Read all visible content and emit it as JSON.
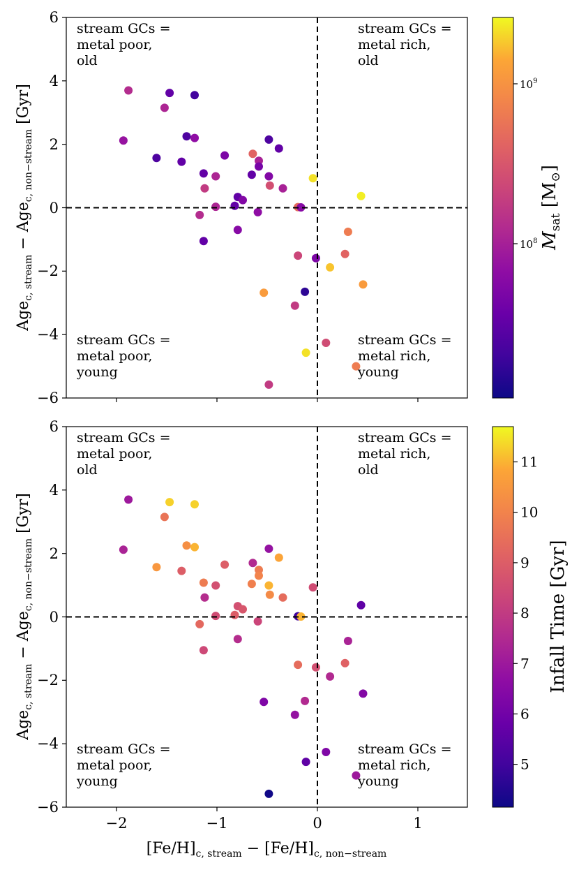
{
  "chart_data": [
    {
      "type": "scatter",
      "panel": "top",
      "xlabel": "[Fe/H]c, stream − [Fe/H]c, non−stream",
      "ylabel": "Agec, stream − Agec, non−stream [Gyr]",
      "xlim": [
        -2.5,
        1.5
      ],
      "ylim": [
        -6,
        6
      ],
      "xticks": [
        -2,
        -1,
        0,
        1
      ],
      "xtick_labels": [
        "−2",
        "−1",
        "0",
        "1"
      ],
      "yticks": [
        -6,
        -4,
        -2,
        0,
        2,
        4,
        6
      ],
      "ytick_labels": [
        "−6",
        "−4",
        "−2",
        "0",
        "2",
        "4",
        "6"
      ],
      "reference_lines": {
        "x": 0,
        "y": 0,
        "style": "dashed"
      },
      "quadrant_labels": {
        "top_left": [
          "stream GCs =",
          "metal poor,",
          "old"
        ],
        "top_right": [
          "stream GCs =",
          "metal rich,",
          "old"
        ],
        "bottom_left": [
          "stream GCs =",
          "metal poor,",
          "young"
        ],
        "bottom_right": [
          "stream GCs =",
          "metal rich,",
          "young"
        ]
      },
      "colorbar": {
        "label": "M_sat [M_⊙]",
        "label_main": "M",
        "label_sub": "sat",
        "label_unit_open": "[M",
        "label_unit_sub": "⊙",
        "label_unit_close": "]",
        "scale": "log",
        "range": [
          14000000.0,
          2600000000.0
        ],
        "colormap": "plasma",
        "ticks": [
          100000000,
          1000000000
        ],
        "tick_labels": [
          {
            "base": "10",
            "exp": "8"
          },
          {
            "base": "10",
            "exp": "9"
          }
        ]
      },
      "points": [
        {
          "x": -1.88,
          "y": 3.7,
          "c": 150000000.0
        },
        {
          "x": -1.47,
          "y": 3.62,
          "c": 40000000.0
        },
        {
          "x": -1.22,
          "y": 3.55,
          "c": 26000000.0
        },
        {
          "x": -1.52,
          "y": 3.15,
          "c": 130000000.0
        },
        {
          "x": -1.93,
          "y": 2.12,
          "c": 90000000.0
        },
        {
          "x": -1.3,
          "y": 2.25,
          "c": 30000000.0
        },
        {
          "x": -1.22,
          "y": 2.2,
          "c": 80000000.0
        },
        {
          "x": -0.48,
          "y": 2.15,
          "c": 30000000.0
        },
        {
          "x": -0.38,
          "y": 1.87,
          "c": 40000000.0
        },
        {
          "x": -1.6,
          "y": 1.57,
          "c": 30000000.0
        },
        {
          "x": -0.64,
          "y": 1.7,
          "c": 450000000.0
        },
        {
          "x": -0.92,
          "y": 1.65,
          "c": 60000000.0
        },
        {
          "x": -1.35,
          "y": 1.45,
          "c": 40000000.0
        },
        {
          "x": -0.58,
          "y": 1.48,
          "c": 120000000.0
        },
        {
          "x": -0.58,
          "y": 1.3,
          "c": 55000000.0
        },
        {
          "x": -1.13,
          "y": 1.08,
          "c": 40000000.0
        },
        {
          "x": -0.65,
          "y": 1.04,
          "c": 40000000.0
        },
        {
          "x": -1.01,
          "y": 0.99,
          "c": 130000000.0
        },
        {
          "x": -0.48,
          "y": 0.99,
          "c": 65000000.0
        },
        {
          "x": -0.04,
          "y": 0.93,
          "c": 2200000000.0
        },
        {
          "x": 0.44,
          "y": 0.37,
          "c": 2400000000.0
        },
        {
          "x": -0.47,
          "y": 0.7,
          "c": 300000000.0
        },
        {
          "x": -1.12,
          "y": 0.61,
          "c": 200000000.0
        },
        {
          "x": -0.34,
          "y": 0.61,
          "c": 120000000.0
        },
        {
          "x": -0.79,
          "y": 0.34,
          "c": 40000000.0
        },
        {
          "x": -0.74,
          "y": 0.24,
          "c": 65000000.0
        },
        {
          "x": -0.82,
          "y": 0.06,
          "c": 40000000.0
        },
        {
          "x": -1.01,
          "y": 0.03,
          "c": 130000000.0
        },
        {
          "x": -0.19,
          "y": 0.02,
          "c": 500000000.0
        },
        {
          "x": -0.16,
          "y": 0.01,
          "c": 70000000.0
        },
        {
          "x": -1.17,
          "y": -0.23,
          "c": 150000000.0
        },
        {
          "x": -0.59,
          "y": -0.14,
          "c": 80000000.0
        },
        {
          "x": 0.31,
          "y": -0.76,
          "c": 700000000.0
        },
        {
          "x": -0.79,
          "y": -0.7,
          "c": 70000000.0
        },
        {
          "x": -1.13,
          "y": -1.05,
          "c": 40000000.0
        },
        {
          "x": -0.19,
          "y": -1.51,
          "c": 250000000.0
        },
        {
          "x": -0.01,
          "y": -1.59,
          "c": 60000000.0
        },
        {
          "x": 0.28,
          "y": -1.46,
          "c": 450000000.0
        },
        {
          "x": 0.13,
          "y": -1.88,
          "c": 1800000000.0
        },
        {
          "x": 0.46,
          "y": -2.42,
          "c": 1200000000.0
        },
        {
          "x": -0.53,
          "y": -2.68,
          "c": 1200000000.0
        },
        {
          "x": -0.12,
          "y": -2.65,
          "c": 20000000.0
        },
        {
          "x": -0.22,
          "y": -3.09,
          "c": 200000000.0
        },
        {
          "x": 0.09,
          "y": -4.26,
          "c": 280000000.0
        },
        {
          "x": -0.11,
          "y": -4.57,
          "c": 2200000000.0
        },
        {
          "x": 0.39,
          "y": -5.0,
          "c": 700000000.0
        },
        {
          "x": -0.48,
          "y": -5.58,
          "c": 200000000.0
        }
      ]
    },
    {
      "type": "scatter",
      "panel": "bottom",
      "xlabel": "[Fe/H]c, stream − [Fe/H]c, non−stream",
      "ylabel": "Agec, stream − Agec, non−stream [Gyr]",
      "xlim": [
        -2.5,
        1.5
      ],
      "ylim": [
        -6,
        6
      ],
      "xticks": [
        -2,
        -1,
        0,
        1
      ],
      "xtick_labels": [
        "−2",
        "−1",
        "0",
        "1"
      ],
      "yticks": [
        -6,
        -4,
        -2,
        0,
        2,
        4,
        6
      ],
      "ytick_labels": [
        "−6",
        "−4",
        "−2",
        "0",
        "2",
        "4",
        "6"
      ],
      "reference_lines": {
        "x": 0,
        "y": 0,
        "style": "dashed"
      },
      "quadrant_labels": {
        "top_left": [
          "stream GCs =",
          "metal poor,",
          "old"
        ],
        "top_right": [
          "stream GCs =",
          "metal rich,",
          "old"
        ],
        "bottom_left": [
          "stream GCs =",
          "metal poor,",
          "young"
        ],
        "bottom_right": [
          "stream GCs =",
          "metal rich,",
          "young"
        ]
      },
      "colorbar": {
        "label": "Infall Time [Gyr]",
        "scale": "linear",
        "range": [
          4.15,
          11.7
        ],
        "colormap": "plasma",
        "ticks": [
          5,
          6,
          7,
          8,
          9,
          10,
          11
        ],
        "tick_labels": [
          "5",
          "6",
          "7",
          "8",
          "9",
          "10",
          "11"
        ]
      },
      "points": [
        {
          "x": -1.88,
          "y": 3.7,
          "c": 7.0
        },
        {
          "x": -1.47,
          "y": 3.62,
          "c": 11.3
        },
        {
          "x": -1.22,
          "y": 3.55,
          "c": 11.3
        },
        {
          "x": -1.52,
          "y": 3.15,
          "c": 9.6
        },
        {
          "x": -1.93,
          "y": 2.12,
          "c": 7.3
        },
        {
          "x": -1.3,
          "y": 2.25,
          "c": 10.3
        },
        {
          "x": -1.22,
          "y": 2.2,
          "c": 11.0
        },
        {
          "x": -0.48,
          "y": 2.15,
          "c": 6.8
        },
        {
          "x": -0.38,
          "y": 1.87,
          "c": 10.8
        },
        {
          "x": -1.6,
          "y": 1.57,
          "c": 10.5
        },
        {
          "x": -0.64,
          "y": 1.7,
          "c": 7.5
        },
        {
          "x": -0.92,
          "y": 1.65,
          "c": 9.0
        },
        {
          "x": -1.35,
          "y": 1.45,
          "c": 9.0
        },
        {
          "x": -0.58,
          "y": 1.48,
          "c": 9.8
        },
        {
          "x": -0.58,
          "y": 1.3,
          "c": 10.0
        },
        {
          "x": -1.13,
          "y": 1.08,
          "c": 9.8
        },
        {
          "x": -0.65,
          "y": 1.04,
          "c": 9.9
        },
        {
          "x": -1.01,
          "y": 0.99,
          "c": 8.6
        },
        {
          "x": -0.48,
          "y": 0.99,
          "c": 11.0
        },
        {
          "x": -0.04,
          "y": 0.93,
          "c": 8.5
        },
        {
          "x": 0.44,
          "y": 0.37,
          "c": 5.6
        },
        {
          "x": -0.47,
          "y": 0.7,
          "c": 10.2
        },
        {
          "x": -1.12,
          "y": 0.61,
          "c": 7.6
        },
        {
          "x": -0.34,
          "y": 0.61,
          "c": 9.4
        },
        {
          "x": -0.79,
          "y": 0.34,
          "c": 8.6
        },
        {
          "x": -0.74,
          "y": 0.24,
          "c": 8.8
        },
        {
          "x": -0.82,
          "y": 0.06,
          "c": 9.0
        },
        {
          "x": -1.01,
          "y": 0.03,
          "c": 8.5
        },
        {
          "x": -0.19,
          "y": 0.02,
          "c": 5.0
        },
        {
          "x": -0.16,
          "y": 0.01,
          "c": 11.0
        },
        {
          "x": -1.17,
          "y": -0.23,
          "c": 9.3
        },
        {
          "x": -0.59,
          "y": -0.14,
          "c": 8.3
        },
        {
          "x": 0.31,
          "y": -0.76,
          "c": 7.3
        },
        {
          "x": -0.79,
          "y": -0.7,
          "c": 7.6
        },
        {
          "x": -1.13,
          "y": -1.05,
          "c": 8.4
        },
        {
          "x": -0.19,
          "y": -1.51,
          "c": 9.4
        },
        {
          "x": -0.01,
          "y": -1.59,
          "c": 8.6
        },
        {
          "x": 0.28,
          "y": -1.46,
          "c": 9.1
        },
        {
          "x": 0.13,
          "y": -1.88,
          "c": 7.5
        },
        {
          "x": 0.46,
          "y": -2.42,
          "c": 6.4
        },
        {
          "x": -0.53,
          "y": -2.68,
          "c": 6.3
        },
        {
          "x": -0.12,
          "y": -2.65,
          "c": 7.5
        },
        {
          "x": -0.22,
          "y": -3.09,
          "c": 6.8
        },
        {
          "x": 0.09,
          "y": -4.26,
          "c": 6.3
        },
        {
          "x": -0.11,
          "y": -4.57,
          "c": 5.6
        },
        {
          "x": 0.39,
          "y": -5.0,
          "c": 7.0
        },
        {
          "x": -0.48,
          "y": -5.58,
          "c": 4.2
        }
      ]
    }
  ]
}
